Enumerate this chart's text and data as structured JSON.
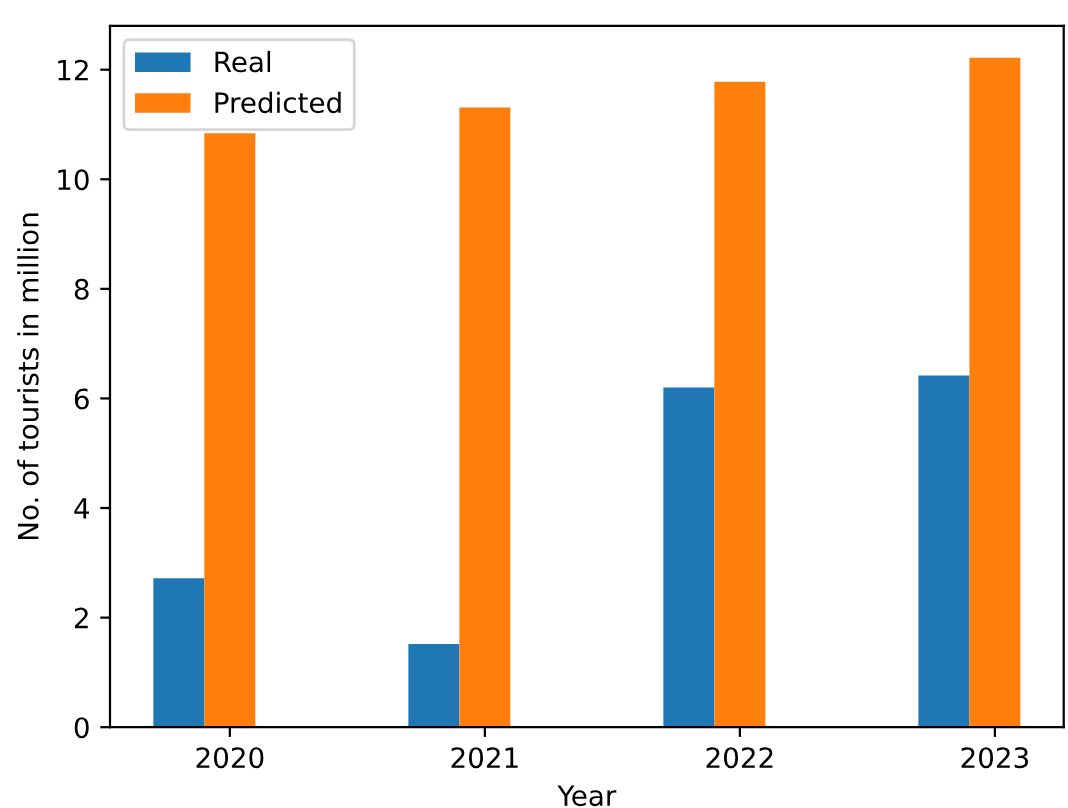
{
  "chart_data": {
    "type": "bar",
    "xlabel": "Year",
    "ylabel": "No. of tourists in million",
    "categories": [
      "2020",
      "2021",
      "2022",
      "2023"
    ],
    "series": [
      {
        "name": "Real",
        "color": "#1f77b4",
        "values": [
          2.72,
          1.52,
          6.2,
          6.42
        ]
      },
      {
        "name": "Predicted",
        "color": "#ff7f0e",
        "values": [
          10.84,
          11.31,
          11.78,
          12.22
        ]
      }
    ],
    "ylim": [
      0,
      12.8
    ],
    "yticks": [
      0,
      2,
      4,
      6,
      8,
      10,
      12
    ],
    "legend": "top left",
    "grid": false
  }
}
